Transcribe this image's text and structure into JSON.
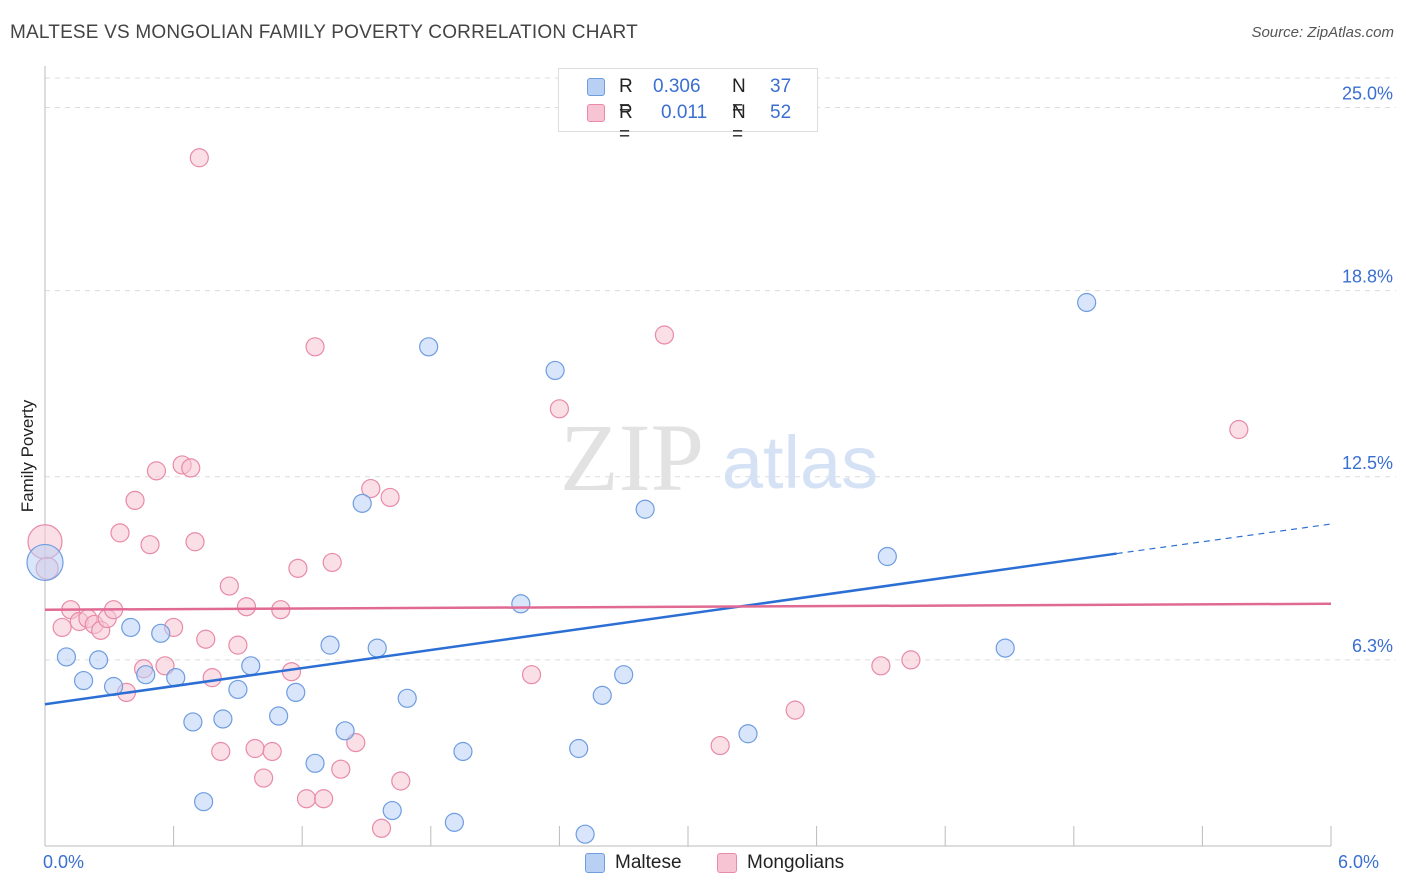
{
  "header": {
    "title": "MALTESE VS MONGOLIAN FAMILY POVERTY CORRELATION CHART",
    "source": "Source: ZipAtlas.com"
  },
  "watermark": {
    "zip": "ZIP",
    "atlas": "atlas"
  },
  "legend": {
    "r_label": "R =",
    "n_label": "N =",
    "rows": [
      {
        "r": "0.306",
        "n": "37"
      },
      {
        "r": "0.011",
        "n": "52"
      }
    ]
  },
  "colors": {
    "maltese": "#6e9de0",
    "maltese_fill": "#b9d0f5",
    "maltese_line": "#2c6fd4",
    "mongolian": "#e88aa8",
    "mongolian_fill": "#f7c4d4",
    "mongolian_line": "#e06a93",
    "tick_text": "#3a6fd1"
  },
  "chart_data": {
    "type": "scatter",
    "title": "MALTESE VS MONGOLIAN FAMILY POVERTY CORRELATION CHART",
    "xlabel": "",
    "ylabel": "Family Poverty",
    "xlim": [
      0.0,
      6.0
    ],
    "ylim": [
      0.0,
      26.0
    ],
    "x_tick_labels": [
      "0.0%",
      "6.0%"
    ],
    "y_ticks": [
      6.3,
      12.5,
      18.8,
      25.0
    ],
    "y_tick_labels": [
      "6.3%",
      "12.5%",
      "18.8%",
      "25.0%"
    ],
    "grid": true,
    "legend_placement": "top-center",
    "series": [
      {
        "name": "Maltese",
        "r": 0.306,
        "n": 37,
        "trend": {
          "x": [
            0.0,
            5.0,
            6.0
          ],
          "y": [
            4.8,
            9.9,
            10.9
          ],
          "solid_until": 5.0
        },
        "points": [
          [
            0.0,
            9.6
          ],
          [
            0.1,
            6.4
          ],
          [
            0.18,
            5.6
          ],
          [
            0.25,
            6.3
          ],
          [
            0.32,
            5.4
          ],
          [
            0.4,
            7.4
          ],
          [
            0.47,
            5.8
          ],
          [
            0.54,
            7.2
          ],
          [
            0.61,
            5.7
          ],
          [
            0.69,
            4.2
          ],
          [
            0.74,
            1.5
          ],
          [
            0.83,
            4.3
          ],
          [
            0.9,
            5.3
          ],
          [
            0.96,
            6.1
          ],
          [
            1.09,
            4.4
          ],
          [
            1.17,
            5.2
          ],
          [
            1.26,
            2.8
          ],
          [
            1.33,
            6.8
          ],
          [
            1.4,
            3.9
          ],
          [
            1.48,
            11.6
          ],
          [
            1.55,
            6.7
          ],
          [
            1.62,
            1.2
          ],
          [
            1.69,
            5.0
          ],
          [
            1.79,
            16.9
          ],
          [
            1.91,
            0.8
          ],
          [
            1.95,
            3.2
          ],
          [
            2.22,
            8.2
          ],
          [
            2.38,
            16.1
          ],
          [
            2.49,
            3.3
          ],
          [
            2.52,
            0.4
          ],
          [
            2.6,
            5.1
          ],
          [
            2.7,
            5.8
          ],
          [
            2.8,
            11.4
          ],
          [
            3.28,
            3.8
          ],
          [
            3.93,
            9.8
          ],
          [
            4.48,
            6.7
          ],
          [
            4.86,
            18.4
          ]
        ]
      },
      {
        "name": "Mongolians",
        "r": 0.011,
        "n": 52,
        "trend": {
          "x": [
            0.0,
            6.0
          ],
          "y": [
            8.0,
            8.2
          ]
        },
        "points": [
          [
            0.0,
            10.3
          ],
          [
            0.01,
            9.4
          ],
          [
            0.08,
            7.4
          ],
          [
            0.12,
            8.0
          ],
          [
            0.16,
            7.6
          ],
          [
            0.2,
            7.7
          ],
          [
            0.23,
            7.5
          ],
          [
            0.26,
            7.3
          ],
          [
            0.29,
            7.7
          ],
          [
            0.32,
            8.0
          ],
          [
            0.35,
            10.6
          ],
          [
            0.38,
            5.2
          ],
          [
            0.42,
            11.7
          ],
          [
            0.46,
            6.0
          ],
          [
            0.49,
            10.2
          ],
          [
            0.52,
            12.7
          ],
          [
            0.56,
            6.1
          ],
          [
            0.6,
            7.4
          ],
          [
            0.64,
            12.9
          ],
          [
            0.68,
            12.8
          ],
          [
            0.7,
            10.3
          ],
          [
            0.72,
            23.3
          ],
          [
            0.75,
            7.0
          ],
          [
            0.78,
            5.7
          ],
          [
            0.82,
            3.2
          ],
          [
            0.86,
            8.8
          ],
          [
            0.9,
            6.8
          ],
          [
            0.94,
            8.1
          ],
          [
            0.98,
            3.3
          ],
          [
            1.02,
            2.3
          ],
          [
            1.06,
            3.2
          ],
          [
            1.1,
            8.0
          ],
          [
            1.15,
            5.9
          ],
          [
            1.18,
            9.4
          ],
          [
            1.22,
            1.6
          ],
          [
            1.26,
            16.9
          ],
          [
            1.3,
            1.6
          ],
          [
            1.34,
            9.6
          ],
          [
            1.38,
            2.6
          ],
          [
            1.45,
            3.5
          ],
          [
            1.52,
            12.1
          ],
          [
            1.57,
            0.6
          ],
          [
            1.61,
            11.8
          ],
          [
            1.66,
            2.2
          ],
          [
            2.27,
            5.8
          ],
          [
            2.4,
            14.8
          ],
          [
            2.89,
            17.3
          ],
          [
            3.15,
            3.4
          ],
          [
            3.5,
            4.6
          ],
          [
            3.9,
            6.1
          ],
          [
            4.04,
            6.3
          ],
          [
            5.57,
            14.1
          ]
        ]
      }
    ]
  },
  "bottom_legend": {
    "maltese": "Maltese",
    "mongolians": "Mongolians"
  }
}
